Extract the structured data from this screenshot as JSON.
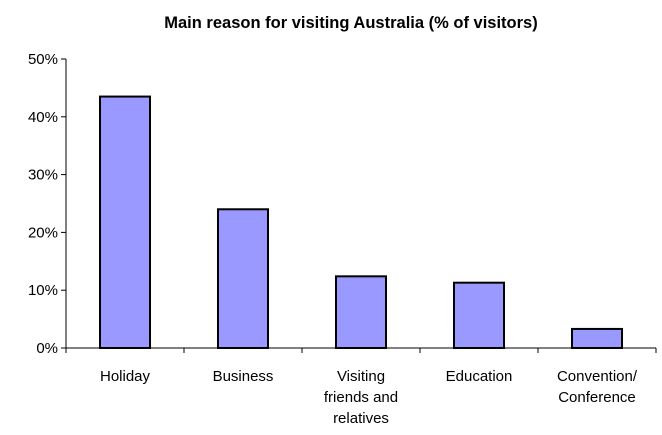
{
  "chart_data": {
    "type": "bar",
    "title": "Main reason for visiting Australia (% of visitors)",
    "xlabel": "",
    "ylabel": "",
    "categories": [
      "Holiday",
      "Business",
      "Visiting friends and relatives",
      "Education",
      "Convention/ Conference"
    ],
    "category_label_lines": [
      [
        "Holiday"
      ],
      [
        "Business"
      ],
      [
        "Visiting",
        "friends and",
        "relatives"
      ],
      [
        "Education"
      ],
      [
        "Convention/",
        "Conference"
      ]
    ],
    "values": [
      43.5,
      24.0,
      12.4,
      11.3,
      3.3
    ],
    "ylim": [
      0,
      50
    ],
    "yticks": [
      0,
      10,
      20,
      30,
      40,
      50
    ],
    "ytick_labels": [
      "0%",
      "10%",
      "20%",
      "30%",
      "40%",
      "50%"
    ],
    "grid": false,
    "legend": "none",
    "colors": {
      "bar_fill": "#9999ff",
      "bar_stroke": "#000000",
      "axis": "#000000"
    }
  }
}
